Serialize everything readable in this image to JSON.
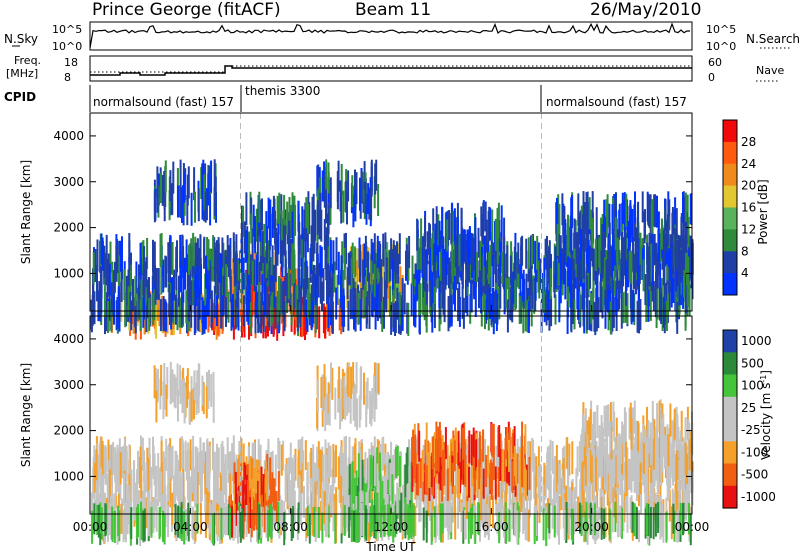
{
  "header": {
    "title": "Prince George (fitACF)",
    "beam": "Beam 11",
    "date": "26/May/2010"
  },
  "panels": {
    "nsky": {
      "label": "N.Sky",
      "ytop": "10^5",
      "ybot": "10^0",
      "right_top": "10^5",
      "right_bot": "10^0",
      "right_label": "N.Search"
    },
    "freq": {
      "label1": "Freq.",
      "label2": "[MHz]",
      "ytop": "18",
      "ybot": "8",
      "right_top": "60",
      "right_bot": "0",
      "right_label": "Nave"
    },
    "cpid": {
      "label": "CPID",
      "segments": [
        {
          "name": "normalsound (fast) 157",
          "start_h": 0,
          "end_h": 6
        },
        {
          "name": "themis 3300",
          "start_h": 6,
          "end_h": 18
        },
        {
          "name": "normalsound (fast) 157",
          "start_h": 18,
          "end_h": 24
        }
      ]
    }
  },
  "colors": {
    "power": [
      "#0033ff",
      "#1f3fa6",
      "#2f8a3c",
      "#58b35a",
      "#e2c733",
      "#f08a1c",
      "#ff5a10",
      "#f00a0a"
    ],
    "velocity": [
      "#e81010",
      "#f25f12",
      "#f4a02a",
      "#c4c4c4",
      "#c4c4c4",
      "#46c43a",
      "#2b8a3a",
      "#1f42a8"
    ]
  },
  "chart_data": [
    {
      "type": "heatmap",
      "name": "power",
      "xlabel": "",
      "ylabel": "Slant Range [km]",
      "xlim": [
        0,
        24
      ],
      "ylim": [
        180,
        4500
      ],
      "yticks": [
        1000,
        2000,
        3000,
        4000
      ],
      "ytick_labels": [
        "1000",
        "2000",
        "3000",
        "4000"
      ],
      "xticks_h": [
        0,
        4,
        8,
        12,
        16,
        20,
        24
      ],
      "colorbar": {
        "label": "Power [dB]",
        "ticks": [
          "4",
          "8",
          "12",
          "16",
          "20",
          "24",
          "28"
        ]
      },
      "regions": [
        {
          "t": [
            4.8,
            10.0
          ],
          "r": [
            220,
            520
          ],
          "class": 7
        },
        {
          "t": [
            5.0,
            8.3
          ],
          "r": [
            500,
            1500
          ],
          "class": 6
        },
        {
          "t": [
            0.8,
            5.5
          ],
          "r": [
            240,
            620
          ],
          "class": 5
        },
        {
          "t": [
            10.2,
            12.5
          ],
          "r": [
            700,
            1700
          ],
          "class": 4
        },
        {
          "t": [
            0,
            24
          ],
          "r": [
            350,
            1900
          ],
          "class": 1
        },
        {
          "t": [
            2.5,
            5.0
          ],
          "r": [
            2700,
            3500
          ],
          "class": 1
        },
        {
          "t": [
            9.0,
            11.5
          ],
          "r": [
            2700,
            3500
          ],
          "class": 1
        },
        {
          "t": [
            6.0,
            9.5
          ],
          "r": [
            1900,
            2800
          ],
          "class": 1
        },
        {
          "t": [
            13.0,
            16.5
          ],
          "r": [
            1300,
            2600
          ],
          "class": 1
        },
        {
          "t": [
            18.5,
            24
          ],
          "r": [
            1300,
            2800
          ],
          "class": 1
        }
      ]
    },
    {
      "type": "heatmap",
      "name": "velocity",
      "xlabel": "Time UT",
      "ylabel": "Slant Range [km]",
      "xlim": [
        0,
        24
      ],
      "ylim": [
        180,
        4500
      ],
      "yticks": [
        1000,
        2000,
        3000,
        4000
      ],
      "ytick_labels": [
        "1000",
        "2000",
        "3000",
        "4000"
      ],
      "xticks_h": [
        0,
        4,
        8,
        12,
        16,
        20,
        24
      ],
      "xtick_labels": [
        "00:00",
        "04:00",
        "08:00",
        "12:00",
        "16:00",
        "20:00",
        "00:00"
      ],
      "colorbar": {
        "label": "Velocity [m s^-1]",
        "ticks": [
          "1000",
          "500",
          "100",
          "25",
          "-25",
          "-100",
          "-500",
          "-1000"
        ]
      },
      "regions": [
        {
          "t": [
            0,
            24
          ],
          "r": [
            220,
            1900
          ],
          "class": 3
        },
        {
          "t": [
            5.5,
            7.5
          ],
          "r": [
            300,
            1500
          ],
          "class": 1
        },
        {
          "t": [
            10.2,
            12.8
          ],
          "r": [
            300,
            1700
          ],
          "class": 5
        },
        {
          "t": [
            12.8,
            17.5
          ],
          "r": [
            1100,
            2200
          ],
          "class": 1
        },
        {
          "t": [
            2.5,
            5.0
          ],
          "r": [
            2800,
            3500
          ],
          "class": 3
        },
        {
          "t": [
            9.0,
            11.5
          ],
          "r": [
            2700,
            3500
          ],
          "class": 3
        },
        {
          "t": [
            19.5,
            24
          ],
          "r": [
            1300,
            2700
          ],
          "class": 3
        },
        {
          "t": [
            0,
            24
          ],
          "r": [
            180,
            450
          ],
          "class": 5
        }
      ]
    }
  ]
}
